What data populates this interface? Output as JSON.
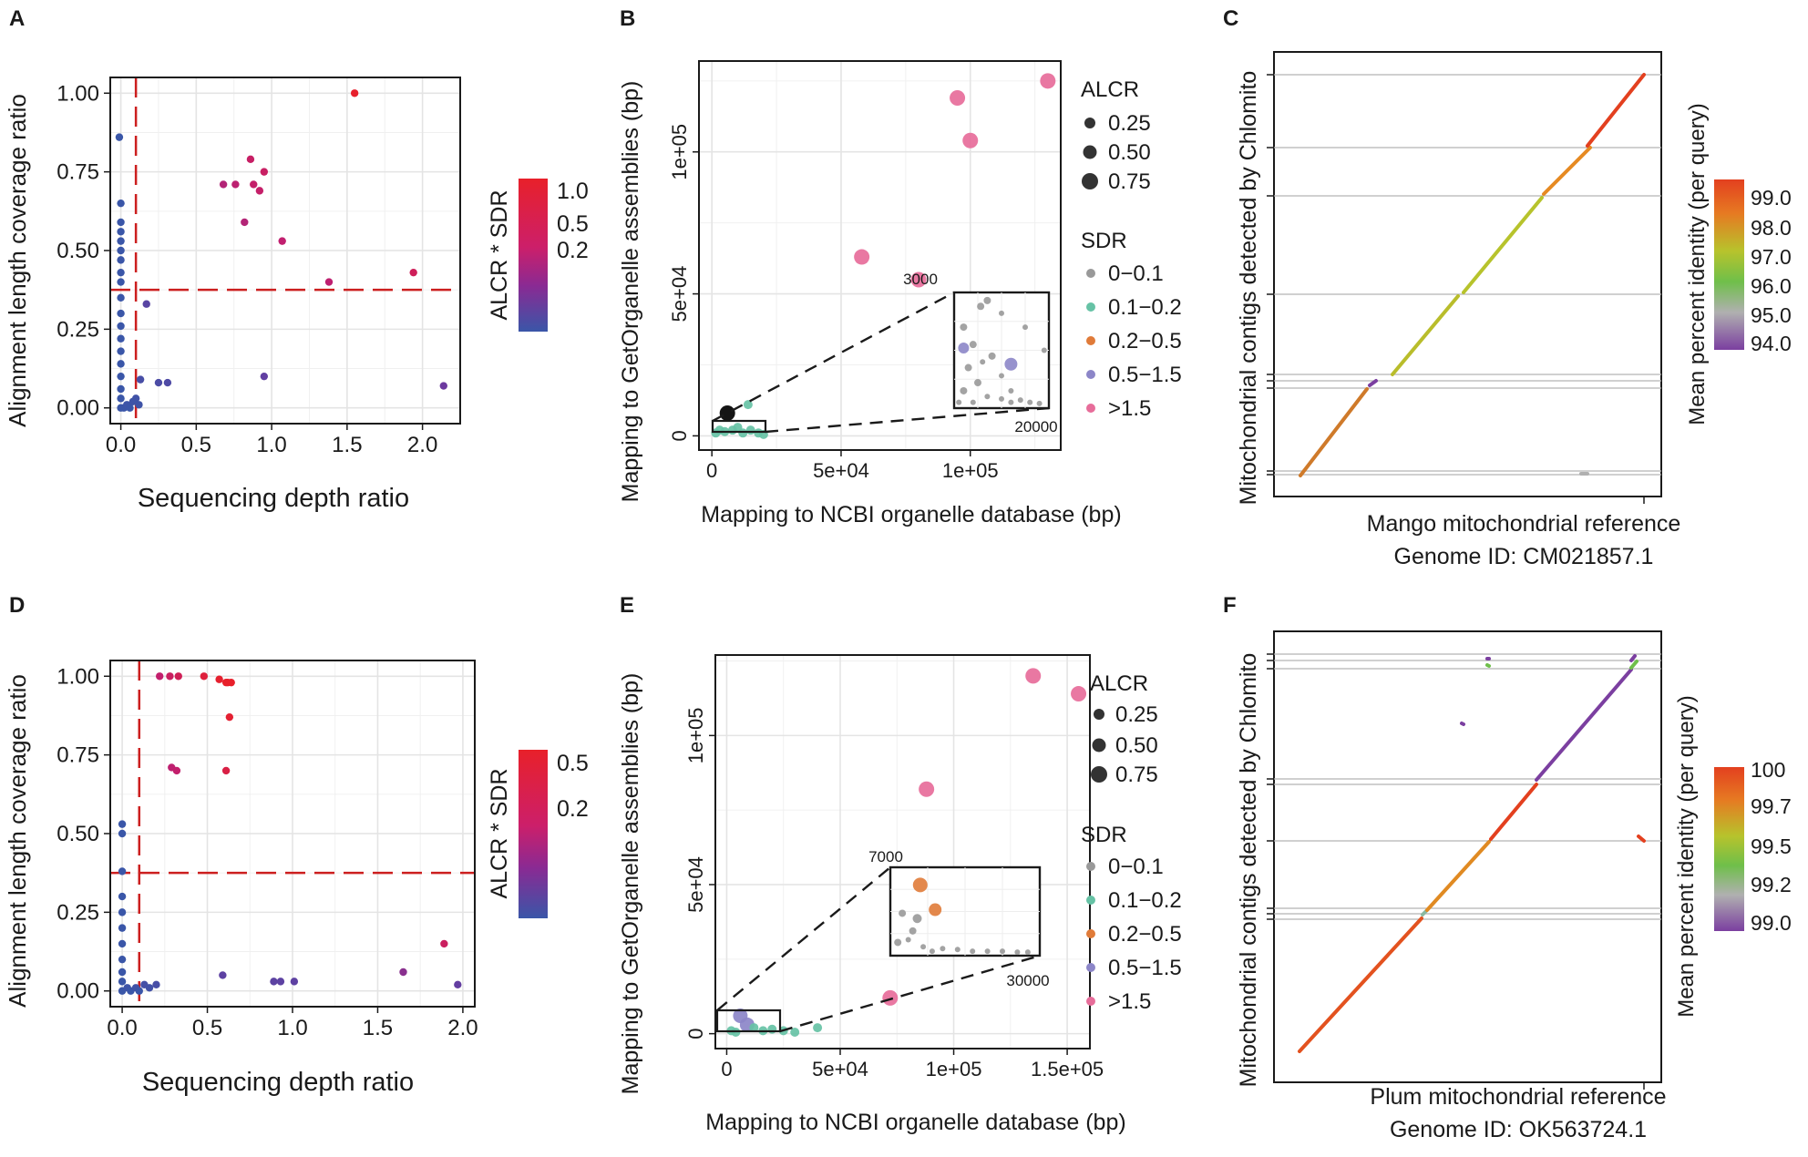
{
  "chart_data": [
    {
      "panel": "A",
      "type": "scatter",
      "xlabel": "Sequencing depth ratio",
      "ylabel": "Alignment length coverage ratio",
      "xlim": [
        -0.07,
        2.25
      ],
      "ylim": [
        -0.05,
        1.05
      ],
      "xticks": [
        0.0,
        0.5,
        1.0,
        1.5,
        2.0
      ],
      "xtick_labels": [
        "0.0",
        "0.5",
        "1.0",
        "1.5",
        "2.0"
      ],
      "yticks": [
        0.0,
        0.25,
        0.5,
        0.75,
        1.0
      ],
      "ytick_labels": [
        "0.00",
        "0.25",
        "0.50",
        "0.75",
        "1.00"
      ],
      "vline": 0.1,
      "hline": 0.375,
      "color_legend": {
        "title": "ALCR * SDR",
        "labels": [
          "1.0",
          "0.5",
          "0.2"
        ]
      },
      "points": [
        [
          1.55,
          1.0
        ],
        [
          0.86,
          0.79
        ],
        [
          0.95,
          0.75
        ],
        [
          0.68,
          0.71
        ],
        [
          0.76,
          0.71
        ],
        [
          0.88,
          0.71
        ],
        [
          0.92,
          0.69
        ],
        [
          0.82,
          0.59
        ],
        [
          1.07,
          0.53
        ],
        [
          1.94,
          0.43
        ],
        [
          1.38,
          0.4
        ],
        [
          0.17,
          0.33
        ],
        [
          0.13,
          0.09
        ],
        [
          0.25,
          0.08
        ],
        [
          0.31,
          0.08
        ],
        [
          0.95,
          0.1
        ],
        [
          2.14,
          0.07
        ],
        [
          0.1,
          0.03
        ],
        [
          0.12,
          0.01
        ],
        [
          -0.01,
          0.86
        ],
        [
          0.0,
          0.65
        ],
        [
          0.0,
          0.59
        ],
        [
          0.0,
          0.56
        ],
        [
          0.0,
          0.53
        ],
        [
          0.0,
          0.5
        ],
        [
          0.0,
          0.47
        ],
        [
          0.0,
          0.43
        ],
        [
          0.0,
          0.4
        ],
        [
          0.0,
          0.35
        ],
        [
          0.0,
          0.3
        ],
        [
          0.0,
          0.26
        ],
        [
          0.0,
          0.22
        ],
        [
          0.0,
          0.18
        ],
        [
          0.0,
          0.14
        ],
        [
          0.0,
          0.1
        ],
        [
          0.0,
          0.06
        ],
        [
          0.0,
          0.03
        ],
        [
          0.0,
          0.0
        ],
        [
          0.02,
          0.0
        ],
        [
          0.04,
          0.01
        ],
        [
          0.06,
          0.0
        ],
        [
          0.08,
          0.02
        ]
      ]
    },
    {
      "panel": "B",
      "type": "scatter",
      "xlabel": "Mapping to NCBI organelle database (bp)",
      "ylabel": "Mapping to GetOrganelle assemblies (bp)",
      "xlim": [
        -5000,
        135000
      ],
      "ylim": [
        -5000,
        132000
      ],
      "xticks": [
        0,
        50000,
        100000
      ],
      "xtick_labels": [
        "0",
        "5e+04",
        "1e+05"
      ],
      "yticks": [
        0,
        50000,
        100000
      ],
      "ytick_labels": [
        "0",
        "5e+04",
        "1e+05"
      ],
      "inset_labels": [
        "3000",
        "20000"
      ],
      "size_legend": {
        "title": "ALCR",
        "labels": [
          "0.25",
          "0.50",
          "0.75"
        ]
      },
      "color_legend": {
        "title": "SDR",
        "labels": [
          "0−0.1",
          "0.1−0.2",
          "0.2−0.5",
          "0.5−1.5",
          ">1.5"
        ],
        "colors": [
          "#999999",
          "#66c2a5",
          "#e07b39",
          "#8c86c8",
          "#e76d9a"
        ]
      },
      "points": [
        [
          130000,
          125000,
          4
        ],
        [
          95000,
          119000,
          4
        ],
        [
          100000,
          104000,
          4
        ],
        [
          58000,
          63000,
          4
        ],
        [
          80000,
          55000,
          4
        ],
        [
          6000,
          8000,
          5
        ],
        [
          14000,
          11000,
          1
        ],
        [
          1500,
          1000,
          1
        ],
        [
          3000,
          2000,
          1
        ],
        [
          5000,
          1500,
          1
        ],
        [
          8000,
          2000,
          1
        ],
        [
          10000,
          3000,
          1
        ],
        [
          12000,
          1000,
          1
        ],
        [
          15000,
          2000,
          1
        ],
        [
          18000,
          1000,
          1
        ],
        [
          20000,
          500,
          1
        ]
      ]
    },
    {
      "panel": "C",
      "type": "line",
      "xlabel": "Mango mitochondrial reference",
      "xlabel2": "Genome ID: CM021857.1",
      "ylabel": "Mitochondrial contigs detected by Chlomito",
      "color_legend": {
        "title": "Mean percent identity (per query)",
        "labels": [
          "99.0",
          "98.0",
          "97.0",
          "96.0",
          "95.0",
          "94.0"
        ]
      }
    },
    {
      "panel": "D",
      "type": "scatter",
      "xlabel": "Sequencing depth ratio",
      "ylabel": "Alignment length coverage ratio",
      "xlim": [
        -0.07,
        2.07
      ],
      "ylim": [
        -0.05,
        1.05
      ],
      "xticks": [
        0.0,
        0.5,
        1.0,
        1.5,
        2.0
      ],
      "xtick_labels": [
        "0.0",
        "0.5",
        "1.0",
        "1.5",
        "2.0"
      ],
      "yticks": [
        0.0,
        0.25,
        0.5,
        0.75,
        1.0
      ],
      "ytick_labels": [
        "0.00",
        "0.25",
        "0.50",
        "0.75",
        "1.00"
      ],
      "vline": 0.1,
      "hline": 0.375,
      "color_legend": {
        "title": "ALCR * SDR",
        "labels": [
          "0.5",
          "0.2"
        ]
      },
      "points": [
        [
          0.22,
          1.0
        ],
        [
          0.28,
          1.0
        ],
        [
          0.33,
          1.0
        ],
        [
          0.48,
          1.0
        ],
        [
          0.57,
          0.99
        ],
        [
          0.61,
          0.98
        ],
        [
          0.62,
          0.98
        ],
        [
          0.64,
          0.98
        ],
        [
          0.63,
          0.87
        ],
        [
          0.29,
          0.71
        ],
        [
          0.32,
          0.7
        ],
        [
          0.61,
          0.7
        ],
        [
          1.89,
          0.15
        ],
        [
          1.65,
          0.06
        ],
        [
          0.59,
          0.05
        ],
        [
          0.89,
          0.03
        ],
        [
          0.93,
          0.03
        ],
        [
          1.01,
          0.03
        ],
        [
          1.97,
          0.02
        ],
        [
          0.13,
          0.02
        ],
        [
          0.16,
          0.01
        ],
        [
          0.2,
          0.02
        ],
        [
          0.0,
          0.53
        ],
        [
          0.0,
          0.5
        ],
        [
          0.0,
          0.38
        ],
        [
          0.0,
          0.3
        ],
        [
          0.0,
          0.25
        ],
        [
          0.0,
          0.2
        ],
        [
          0.0,
          0.15
        ],
        [
          0.0,
          0.1
        ],
        [
          0.0,
          0.06
        ],
        [
          0.0,
          0.03
        ],
        [
          0.0,
          0.0
        ],
        [
          0.03,
          0.01
        ],
        [
          0.05,
          0.0
        ],
        [
          0.08,
          0.01
        ],
        [
          0.1,
          0.0
        ]
      ]
    },
    {
      "panel": "E",
      "type": "scatter",
      "xlabel": "Mapping to NCBI organelle database (bp)",
      "ylabel": "Mapping to GetOrganelle assemblies (bp)",
      "xlim": [
        -5000,
        160000
      ],
      "ylim": [
        -5000,
        127000
      ],
      "xticks": [
        0,
        50000,
        100000,
        150000
      ],
      "xtick_labels": [
        "0",
        "5e+04",
        "1e+05",
        "1.5e+05"
      ],
      "yticks": [
        0,
        50000,
        100000
      ],
      "ytick_labels": [
        "0",
        "5e+04",
        "1e+05"
      ],
      "inset_labels": [
        "7000",
        "30000"
      ],
      "size_legend": {
        "title": "ALCR",
        "labels": [
          "0.25",
          "0.50",
          "0.75"
        ]
      },
      "color_legend": {
        "title": "SDR",
        "labels": [
          "0−0.1",
          "0.1−0.2",
          "0.2−0.5",
          "0.5−1.5",
          ">1.5"
        ],
        "colors": [
          "#999999",
          "#66c2a5",
          "#e07b39",
          "#8c86c8",
          "#e76d9a"
        ]
      },
      "points": [
        [
          135000,
          120000,
          4
        ],
        [
          155000,
          114000,
          4
        ],
        [
          88000,
          82000,
          4
        ],
        [
          72000,
          12000,
          4
        ],
        [
          6000,
          6000,
          3
        ],
        [
          9000,
          3000,
          3
        ],
        [
          2000,
          1000,
          1
        ],
        [
          4000,
          500,
          1
        ],
        [
          12000,
          2000,
          1
        ],
        [
          16000,
          1000,
          1
        ],
        [
          20000,
          1500,
          1
        ],
        [
          25000,
          1000,
          1
        ],
        [
          30000,
          500,
          1
        ],
        [
          40000,
          2000,
          1
        ]
      ]
    },
    {
      "panel": "F",
      "type": "line",
      "xlabel": "Plum mitochondrial reference",
      "xlabel2": "Genome ID: OK563724.1",
      "ylabel": "Mitochondrial contigs detected by Chlomito",
      "color_legend": {
        "title": "Mean percent identity (per query)",
        "labels": [
          "100",
          "99.7",
          "99.5",
          "99.2",
          "99.0"
        ]
      }
    }
  ]
}
